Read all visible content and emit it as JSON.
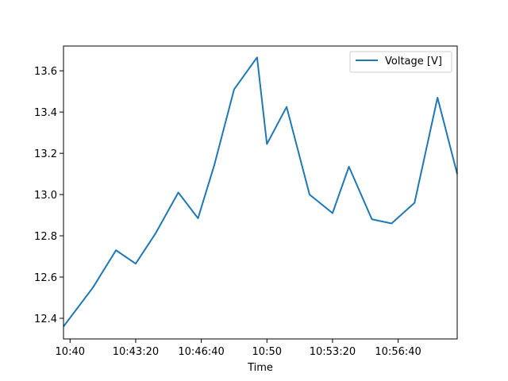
{
  "chart_data": {
    "type": "line",
    "title": "",
    "xlabel": "Time",
    "ylabel": "",
    "x_unit": "time",
    "x": [
      "10:39:40",
      "10:41:10",
      "10:42:20",
      "10:43:20",
      "10:44:20",
      "10:45:30",
      "10:46:30",
      "10:47:20",
      "10:48:20",
      "10:49:30",
      "10:50:00",
      "10:51:00",
      "10:52:10",
      "10:53:20",
      "10:54:10",
      "10:55:20",
      "10:56:20",
      "10:57:30",
      "10:58:40",
      "10:59:40"
    ],
    "series": [
      {
        "name": "Voltage [V]",
        "color": "#1f77b4",
        "values": [
          12.36,
          12.55,
          12.73,
          12.665,
          12.81,
          13.01,
          12.885,
          13.145,
          13.51,
          13.665,
          13.245,
          13.425,
          13.0,
          12.91,
          13.135,
          12.88,
          12.86,
          12.96,
          13.47,
          13.1
        ]
      }
    ],
    "x_ticks": [
      "10:40",
      "10:43:20",
      "10:46:40",
      "10:50",
      "10:53:20",
      "10:56:40"
    ],
    "y_ticks": [
      "12.4",
      "12.6",
      "12.8",
      "13.0",
      "13.2",
      "13.4",
      "13.6"
    ],
    "xlim": [
      "10:39:40",
      "10:59:40"
    ],
    "ylim": [
      12.3,
      13.72
    ],
    "grid": false,
    "legend": "top-right"
  }
}
